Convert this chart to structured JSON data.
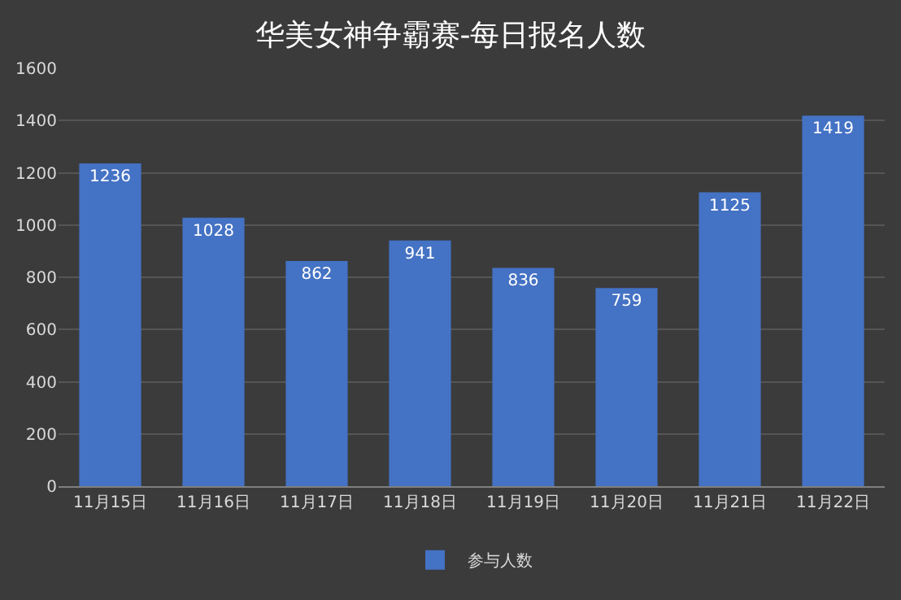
{
  "chart_data": {
    "type": "bar",
    "title": "华美女神争霸赛-每日报名人数",
    "categories": [
      "11月15日",
      "11月16日",
      "11月17日",
      "11月18日",
      "11月19日",
      "11月20日",
      "11月21日",
      "11月22日"
    ],
    "series": [
      {
        "name": "参与人数",
        "color": "#4472c4",
        "values": [
          1236,
          1028,
          862,
          941,
          836,
          759,
          1125,
          1419
        ]
      }
    ],
    "ylim": [
      0,
      1600
    ],
    "yticks": [
      0,
      200,
      400,
      600,
      800,
      1000,
      1200,
      1400,
      1600
    ],
    "grid": "y",
    "legend": "bottom",
    "data_labels": true
  }
}
